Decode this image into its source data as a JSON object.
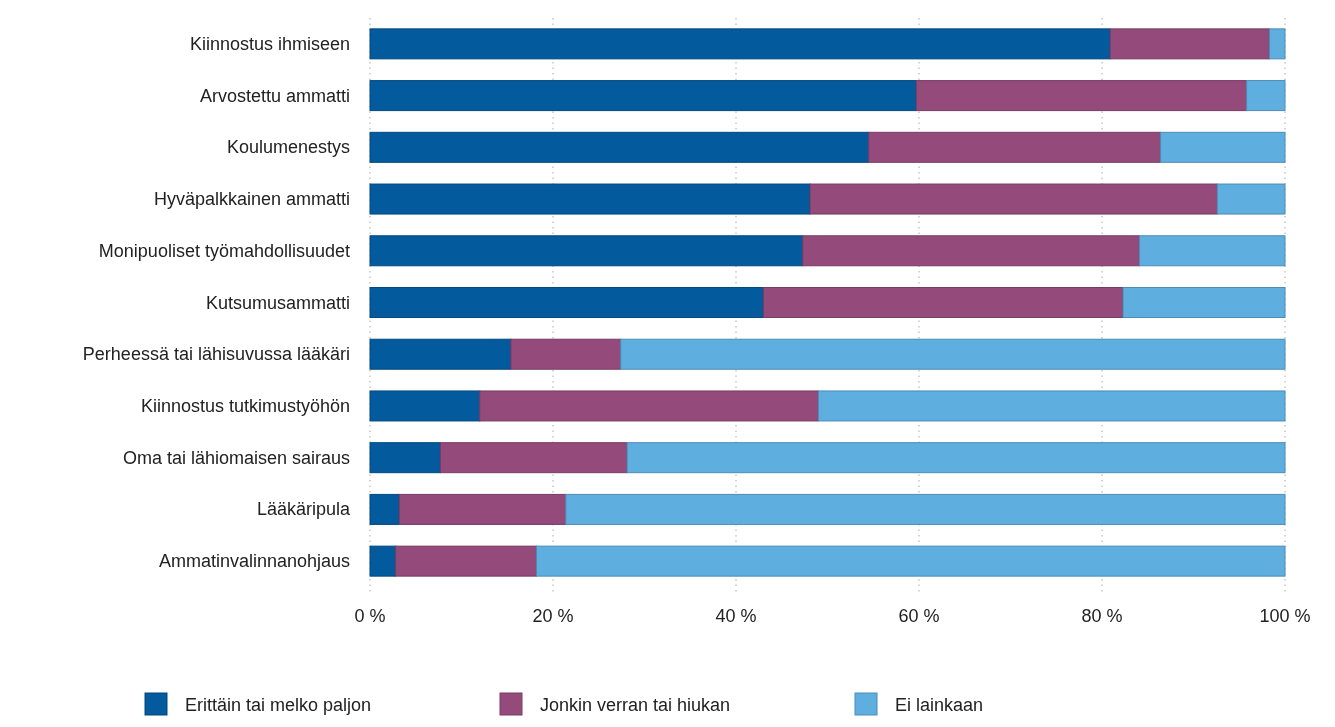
{
  "chart_data": {
    "type": "bar",
    "orientation": "horizontal",
    "stacked": true,
    "categories": [
      "Kiinnostus ihmiseen",
      "Arvostettu ammatti",
      "Koulumenestys",
      "Hyväpalkkainen ammatti",
      "Monipuoliset työmahdollisuudet",
      "Kutsumusammatti",
      "Perheessä tai lähisuvussa lääkäri",
      "Kiinnostus tutkimustyöhön",
      "Oma tai lähiomaisen sairaus",
      "Lääkäripula",
      "Ammatinvalinnanohjaus"
    ],
    "series": [
      {
        "name": "Erittäin tai melko paljon",
        "color": "#035a9c",
        "values": [
          80.9,
          59.7,
          54.5,
          48.1,
          47.3,
          43.0,
          15.4,
          12.0,
          7.7,
          3.2,
          2.8
        ]
      },
      {
        "name": "Jonkin verran tai hiukan",
        "color": "#944a7a",
        "values": [
          17.4,
          36.1,
          31.9,
          44.5,
          36.8,
          39.3,
          12.0,
          37.0,
          20.4,
          18.2,
          15.4
        ]
      },
      {
        "name": "Ei lainkaan",
        "color": "#5eaee0",
        "values": [
          1.7,
          4.2,
          13.6,
          7.4,
          15.9,
          17.7,
          72.6,
          51.0,
          71.9,
          78.6,
          81.8
        ]
      }
    ],
    "xlim": [
      0,
      100
    ],
    "xticks": [
      {
        "value": 0,
        "label": "0 %"
      },
      {
        "value": 20,
        "label": "20 %"
      },
      {
        "value": 40,
        "label": "40 %"
      },
      {
        "value": 60,
        "label": "60 %"
      },
      {
        "value": 80,
        "label": "80 %"
      },
      {
        "value": 100,
        "label": "100 %"
      }
    ],
    "grid": "x",
    "legend": "bottom"
  }
}
